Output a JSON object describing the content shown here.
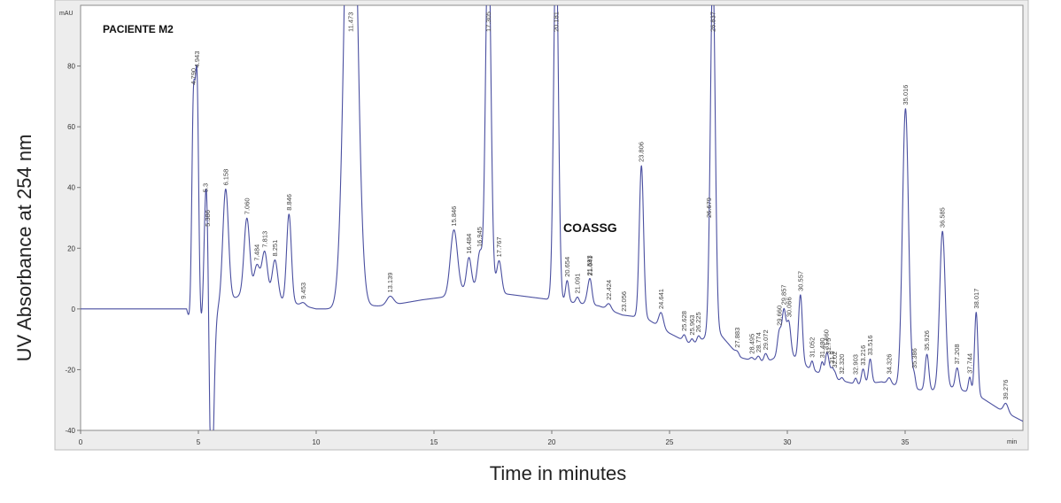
{
  "chart_data": {
    "type": "line",
    "title": "PACIENTE M2",
    "ylabel": "UV Absorbance at 254 nm",
    "xlabel": "Time in minutes",
    "y_unit_label": "mAU",
    "x_unit_label": "min",
    "xlim": [
      0,
      40
    ],
    "ylim": [
      -40,
      100
    ],
    "x_ticks": [
      0,
      5,
      10,
      15,
      20,
      25,
      30,
      35
    ],
    "y_ticks": [
      -40,
      -20,
      0,
      20,
      40,
      60,
      80
    ],
    "grid": false,
    "annotation": "COASSG",
    "line_color": "#4a4fa0",
    "baseline": [
      [
        0,
        0
      ],
      [
        4.5,
        0
      ],
      [
        4.8,
        -10
      ],
      [
        6,
        2
      ],
      [
        7,
        5
      ],
      [
        9,
        2
      ],
      [
        10,
        0
      ],
      [
        11.2,
        0
      ],
      [
        12,
        1
      ],
      [
        13,
        1
      ],
      [
        14.5,
        3
      ],
      [
        15.5,
        4
      ],
      [
        16.5,
        7
      ],
      [
        17.2,
        8
      ],
      [
        18,
        5
      ],
      [
        20,
        3
      ],
      [
        21,
        2
      ],
      [
        22,
        1
      ],
      [
        23,
        -2
      ],
      [
        24,
        -3
      ],
      [
        25,
        -8
      ],
      [
        26,
        -12
      ],
      [
        27,
        -7
      ],
      [
        28,
        -16
      ],
      [
        29,
        -18
      ],
      [
        30,
        -14
      ],
      [
        31,
        -20
      ],
      [
        32,
        -23
      ],
      [
        33,
        -25
      ],
      [
        34,
        -24
      ],
      [
        35,
        -26
      ],
      [
        36,
        -27
      ],
      [
        37,
        -26
      ],
      [
        38,
        -28
      ],
      [
        39,
        -33
      ],
      [
        40,
        -37
      ]
    ],
    "peaks": [
      {
        "x": 4.79,
        "y": 75,
        "w": 0.07,
        "label": "4.790"
      },
      {
        "x": 4.943,
        "y": 80,
        "w": 0.07,
        "label": "4.943"
      },
      {
        "x": 5.3,
        "y": 28,
        "w": 0.08,
        "label": "5.3"
      },
      {
        "x": 5.386,
        "y": 30,
        "w": 0.08,
        "label": "5.386"
      },
      {
        "x": 5.55,
        "y": -60,
        "w": 0.1,
        "label": ""
      },
      {
        "x": 6.158,
        "y": 37,
        "w": 0.12,
        "label": "6.158"
      },
      {
        "x": 7.06,
        "y": 25,
        "w": 0.12,
        "label": "7.060"
      },
      {
        "x": 7.484,
        "y": 10,
        "w": 0.12,
        "label": "7.484"
      },
      {
        "x": 7.813,
        "y": 15,
        "w": 0.12,
        "label": "7.813"
      },
      {
        "x": 8.251,
        "y": 13,
        "w": 0.12,
        "label": "8.251"
      },
      {
        "x": 8.846,
        "y": 29,
        "w": 0.1,
        "label": "8.846"
      },
      {
        "x": 9.453,
        "y": 1,
        "w": 0.1,
        "label": "9.453"
      },
      {
        "x": 11.473,
        "y": 190,
        "w": 0.25,
        "label": "11.473"
      },
      {
        "x": 13.139,
        "y": 3,
        "w": 0.15,
        "label": "13.139"
      },
      {
        "x": 15.846,
        "y": 21,
        "w": 0.15,
        "label": "15.846"
      },
      {
        "x": 16.484,
        "y": 10,
        "w": 0.1,
        "label": "16.484"
      },
      {
        "x": 16.945,
        "y": 11,
        "w": 0.1,
        "label": "16.945"
      },
      {
        "x": 17.305,
        "y": 120,
        "w": 0.11,
        "label": "17.305"
      },
      {
        "x": 17.767,
        "y": 10,
        "w": 0.1,
        "label": "17.767"
      },
      {
        "x": 20.181,
        "y": 120,
        "w": 0.1,
        "label": "20.181"
      },
      {
        "x": 20.654,
        "y": 7,
        "w": 0.07,
        "label": "20.654"
      },
      {
        "x": 21.091,
        "y": 2,
        "w": 0.07,
        "label": "21.091"
      },
      {
        "x": 21.593,
        "y": 6,
        "w": 0.1,
        "label": "21.593"
      },
      {
        "x": 21.641,
        "y": 3,
        "w": 0.07,
        "label": "21.641"
      },
      {
        "x": 22.424,
        "y": 2,
        "w": 0.1,
        "label": "22.424"
      },
      {
        "x": 23.056,
        "y": 0,
        "w": 0.08,
        "label": "23.056"
      },
      {
        "x": 23.806,
        "y": 50,
        "w": 0.09,
        "label": "23.806"
      },
      {
        "x": 24.641,
        "y": 5,
        "w": 0.1,
        "label": "24.641"
      },
      {
        "x": 25.628,
        "y": 2,
        "w": 0.07,
        "label": "25.628"
      },
      {
        "x": 25.963,
        "y": 2,
        "w": 0.07,
        "label": "25.963"
      },
      {
        "x": 26.225,
        "y": 2,
        "w": 0.07,
        "label": "26.225"
      },
      {
        "x": 26.679,
        "y": 3,
        "w": 0.08,
        "label": "26.679"
      },
      {
        "x": 26.837,
        "y": 120,
        "w": 0.1,
        "label": "26.837"
      },
      {
        "x": 27.883,
        "y": 1,
        "w": 0.08,
        "label": "27.883"
      },
      {
        "x": 28.495,
        "y": 1,
        "w": 0.08,
        "label": "28.495"
      },
      {
        "x": 28.774,
        "y": 2,
        "w": 0.08,
        "label": "28.774"
      },
      {
        "x": 29.072,
        "y": 3,
        "w": 0.08,
        "label": "29.072"
      },
      {
        "x": 29.66,
        "y": 8,
        "w": 0.08,
        "label": "29.660"
      },
      {
        "x": 29.857,
        "y": 14,
        "w": 0.08,
        "label": "29.857"
      },
      {
        "x": 30.066,
        "y": 10,
        "w": 0.08,
        "label": "30.066"
      },
      {
        "x": 30.557,
        "y": 22,
        "w": 0.08,
        "label": "30.557"
      },
      {
        "x": 31.052,
        "y": 3,
        "w": 0.06,
        "label": "31.052"
      },
      {
        "x": 31.48,
        "y": 4,
        "w": 0.06,
        "label": "31.480"
      },
      {
        "x": 31.66,
        "y": 6,
        "w": 0.06,
        "label": "31.660"
      },
      {
        "x": 31.75,
        "y": 4,
        "w": 0.06,
        "label": "31.75"
      },
      {
        "x": 31.9,
        "y": 3,
        "w": 0.06,
        "label": "31.9"
      },
      {
        "x": 32.02,
        "y": 2,
        "w": 0.06,
        "label": "32.02"
      },
      {
        "x": 32.32,
        "y": 1,
        "w": 0.06,
        "label": "32.320"
      },
      {
        "x": 32.903,
        "y": 2,
        "w": 0.06,
        "label": "32.903"
      },
      {
        "x": 33.216,
        "y": 5,
        "w": 0.07,
        "label": "33.216"
      },
      {
        "x": 33.516,
        "y": 8,
        "w": 0.07,
        "label": "33.516"
      },
      {
        "x": 34.326,
        "y": 2,
        "w": 0.08,
        "label": "34.326"
      },
      {
        "x": 35.016,
        "y": 92,
        "w": 0.13,
        "label": "35.016"
      },
      {
        "x": 35.386,
        "y": 4,
        "w": 0.06,
        "label": "35.386"
      },
      {
        "x": 35.926,
        "y": 12,
        "w": 0.08,
        "label": "35.926"
      },
      {
        "x": 36.585,
        "y": 52,
        "w": 0.12,
        "label": "36.585"
      },
      {
        "x": 37.208,
        "y": 7,
        "w": 0.08,
        "label": "37.208"
      },
      {
        "x": 37.744,
        "y": 5,
        "w": 0.06,
        "label": "37.744"
      },
      {
        "x": 38.017,
        "y": 27,
        "w": 0.07,
        "label": "38.017"
      },
      {
        "x": 39.276,
        "y": 3,
        "w": 0.1,
        "label": "39.276"
      }
    ]
  }
}
